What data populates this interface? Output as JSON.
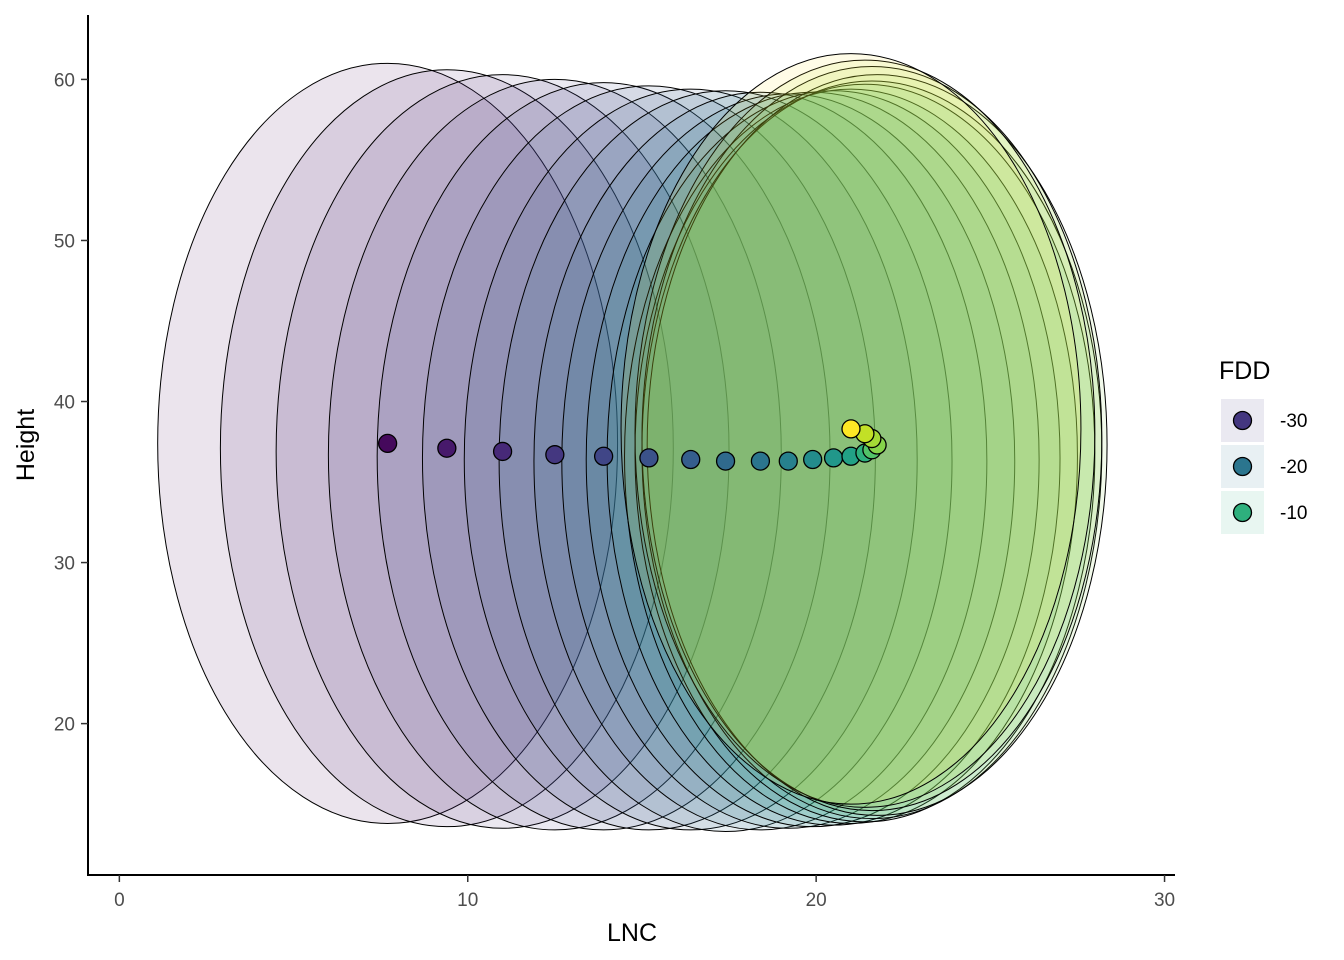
{
  "chart_data": {
    "type": "scatter",
    "xlabel": "LNC",
    "ylabel": "Height",
    "xlim": [
      -0.9,
      30.3
    ],
    "ylim": [
      10.6,
      64.0
    ],
    "x_ticks": [
      "0",
      "10",
      "20",
      "30"
    ],
    "y_ticks": [
      "20",
      "30",
      "40",
      "50",
      "60"
    ],
    "grid": false,
    "legend": {
      "title": "FDD",
      "position": "right",
      "entries": [
        {
          "label": "-30",
          "value": -30
        },
        {
          "label": "-20",
          "value": -20
        },
        {
          "label": "-10",
          "value": -10
        }
      ]
    },
    "color_scale": "viridis",
    "color_range": [
      -37,
      -2
    ],
    "ellipse_fill_opacity": 0.11,
    "points": [
      {
        "x": 7.7,
        "y": 37.4,
        "fdd": -36,
        "rx": 6.6,
        "ry": 23.6
      },
      {
        "x": 9.4,
        "y": 37.1,
        "fdd": -34,
        "rx": 6.5,
        "ry": 23.5
      },
      {
        "x": 11.0,
        "y": 36.9,
        "fdd": -32,
        "rx": 6.5,
        "ry": 23.4
      },
      {
        "x": 12.5,
        "y": 36.7,
        "fdd": -30,
        "rx": 6.5,
        "ry": 23.3
      },
      {
        "x": 13.9,
        "y": 36.6,
        "fdd": -28,
        "rx": 6.5,
        "ry": 23.2
      },
      {
        "x": 15.2,
        "y": 36.5,
        "fdd": -26,
        "rx": 6.5,
        "ry": 23.1
      },
      {
        "x": 16.4,
        "y": 36.4,
        "fdd": -24,
        "rx": 6.5,
        "ry": 23.0
      },
      {
        "x": 17.4,
        "y": 36.3,
        "fdd": -22,
        "rx": 6.5,
        "ry": 23.0
      },
      {
        "x": 18.4,
        "y": 36.3,
        "fdd": -20,
        "rx": 6.5,
        "ry": 22.9
      },
      {
        "x": 19.2,
        "y": 36.3,
        "fdd": -18,
        "rx": 6.5,
        "ry": 22.8
      },
      {
        "x": 19.9,
        "y": 36.4,
        "fdd": -16,
        "rx": 6.5,
        "ry": 22.8
      },
      {
        "x": 20.5,
        "y": 36.5,
        "fdd": -14,
        "rx": 6.5,
        "ry": 22.8
      },
      {
        "x": 21.0,
        "y": 36.6,
        "fdd": -12,
        "rx": 6.5,
        "ry": 22.8
      },
      {
        "x": 21.4,
        "y": 36.8,
        "fdd": -10,
        "rx": 6.6,
        "ry": 22.9
      },
      {
        "x": 21.6,
        "y": 37.0,
        "fdd": -8,
        "rx": 6.6,
        "ry": 22.9
      },
      {
        "x": 21.75,
        "y": 37.3,
        "fdd": -6,
        "rx": 6.6,
        "ry": 23.0
      },
      {
        "x": 21.6,
        "y": 37.7,
        "fdd": -5,
        "rx": 6.6,
        "ry": 23.1
      },
      {
        "x": 21.4,
        "y": 38.0,
        "fdd": -4,
        "rx": 6.6,
        "ry": 23.2
      },
      {
        "x": 21.0,
        "y": 38.3,
        "fdd": -2,
        "rx": 6.6,
        "ry": 23.3
      }
    ]
  }
}
